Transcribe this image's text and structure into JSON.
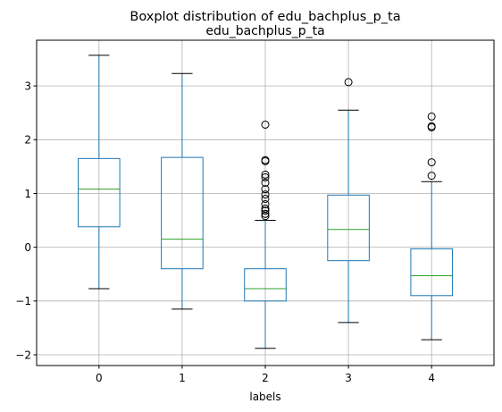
{
  "chart_data": {
    "type": "boxplot",
    "suptitle": "Boxplot distribution of edu_bachplus_p_ta",
    "title": "edu_bachplus_p_ta",
    "xlabel": "labels",
    "ylabel": "",
    "categories": [
      "0",
      "1",
      "2",
      "3",
      "4"
    ],
    "yticks": [
      -2,
      -1,
      0,
      1,
      2,
      3
    ],
    "ylim": [
      -2.2,
      3.85
    ],
    "grid": true,
    "colors": {
      "box": "#1f77b4",
      "median": "#2ca02c",
      "whisker": "#1f77b4",
      "cap": "#000000",
      "flier": "#000000"
    },
    "boxes": [
      {
        "label": "0",
        "whislo": -0.77,
        "q1": 0.38,
        "median": 1.08,
        "q3": 1.65,
        "whishi": 3.57,
        "fliers": []
      },
      {
        "label": "1",
        "whislo": -1.15,
        "q1": -0.4,
        "median": 0.15,
        "q3": 1.67,
        "whishi": 3.23,
        "fliers": []
      },
      {
        "label": "2",
        "whislo": -1.88,
        "q1": -1.0,
        "median": -0.77,
        "q3": -0.4,
        "whishi": 0.5,
        "fliers": [
          0.58,
          0.62,
          0.68,
          0.72,
          0.8,
          0.9,
          0.98,
          1.08,
          1.2,
          1.3,
          1.35,
          1.6,
          1.62,
          2.28
        ]
      },
      {
        "label": "3",
        "whislo": -1.4,
        "q1": -0.25,
        "median": 0.33,
        "q3": 0.97,
        "whishi": 2.55,
        "fliers": [
          3.07
        ]
      },
      {
        "label": "4",
        "whislo": -1.72,
        "q1": -0.9,
        "median": -0.53,
        "q3": -0.03,
        "whishi": 1.22,
        "fliers": [
          1.33,
          1.58,
          2.23,
          2.25,
          2.43
        ]
      }
    ]
  }
}
